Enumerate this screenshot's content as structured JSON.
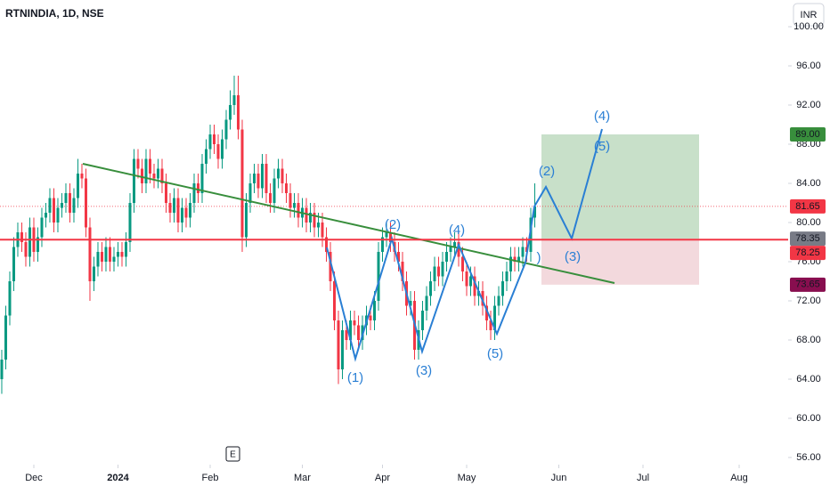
{
  "chart_data": {
    "type": "candlestick",
    "title": "RTNINDIA, 1D, NSE",
    "currency": "INR",
    "event": "E",
    "up_color": "#089981",
    "down_color": "#f23645",
    "grid": false,
    "ylim": [
      55.27,
      102.73
    ],
    "yticks": [
      {
        "value": 56,
        "label": "56.00"
      },
      {
        "value": 60,
        "label": "60.00"
      },
      {
        "value": 64,
        "label": "64.00"
      },
      {
        "value": 68,
        "label": "68.00"
      },
      {
        "value": 72,
        "label": "72.00"
      },
      {
        "value": 76,
        "label": "76.00"
      },
      {
        "value": 80,
        "label": "80.00"
      },
      {
        "value": 84,
        "label": "84.00"
      },
      {
        "value": 88,
        "label": "88.00"
      },
      {
        "value": 92,
        "label": "92.00"
      },
      {
        "value": 96,
        "label": "96.00"
      },
      {
        "value": 100,
        "label": "100.00"
      }
    ],
    "xlim": [
      -0.44,
      196.22
    ],
    "xticks": [
      {
        "value": 8,
        "label": "Dec"
      },
      {
        "value": 29,
        "label": "2024"
      },
      {
        "value": 52,
        "label": "Feb"
      },
      {
        "value": 75,
        "label": "Mar"
      },
      {
        "value": 95,
        "label": "Apr"
      },
      {
        "value": 116,
        "label": "May"
      },
      {
        "value": 139,
        "label": "Jun"
      },
      {
        "value": 160,
        "label": "Jul"
      },
      {
        "value": 184,
        "label": "Aug"
      }
    ],
    "open": [
      64.0,
      66.0,
      70.5,
      74.0,
      77.5,
      79.0,
      78.0,
      76.5,
      79.5,
      77.0,
      78.5,
      80.5,
      81.0,
      82.5,
      80.0,
      81.5,
      82.0,
      83.0,
      81.0,
      82.5,
      85.0,
      84.5,
      79.5,
      74.0,
      75.5,
      77.0,
      76.0,
      77.5,
      76.0,
      76.5,
      77.0,
      76.5,
      78.0,
      82.0,
      86.5,
      85.5,
      84.0,
      86.5,
      85.0,
      84.5,
      85.5,
      84.0,
      82.0,
      81.0,
      82.5,
      80.0,
      81.5,
      80.5,
      82.0,
      84.0,
      83.0,
      86.0,
      87.5,
      89.0,
      88.0,
      86.5,
      88.5,
      90.5,
      92.0,
      93.0,
      89.5,
      78.5,
      82.0,
      84.0,
      85.0,
      83.5,
      86.0,
      83.0,
      82.0,
      84.5,
      85.5,
      84.0,
      83.0,
      81.5,
      82.0,
      80.5,
      81.5,
      80.0,
      81.0,
      79.5,
      80.0,
      78.5,
      77.0,
      74.0,
      70.0,
      65.0,
      69.0,
      68.0,
      70.0,
      69.5,
      68.0,
      69.5,
      70.5,
      70.0,
      72.0,
      77.0,
      78.5,
      79.0,
      78.0,
      77.0,
      76.0,
      74.0,
      71.5,
      72.0,
      67.0,
      69.0,
      71.0,
      72.5,
      74.0,
      75.5,
      74.5,
      76.0,
      77.0,
      77.5,
      78.0,
      76.5,
      75.0,
      73.5,
      74.5,
      72.5,
      73.0,
      71.5,
      70.0,
      69.0,
      71.5,
      72.5,
      74.0,
      75.0,
      76.5,
      76.0,
      76.5,
      77.5,
      77.0,
      80.5
    ],
    "high": [
      67,
      71.5,
      75,
      78.5,
      80,
      80,
      79,
      80.5,
      80.5,
      79.5,
      81.5,
      82,
      83.5,
      83.5,
      82.5,
      83,
      84,
      84,
      83.5,
      86.5,
      86,
      85.5,
      80.5,
      76.5,
      78,
      78,
      78.5,
      78.5,
      77.5,
      78,
      78,
      79,
      83,
      87.5,
      87.5,
      86.5,
      87.5,
      87.5,
      86,
      86.5,
      86.5,
      85,
      83,
      83.5,
      83.5,
      82.5,
      82.5,
      83,
      85,
      85,
      87,
      88.5,
      90,
      90,
      89,
      89.5,
      91.5,
      93.5,
      95,
      95,
      90.5,
      83,
      85,
      86,
      86,
      87,
      87,
      84,
      85.5,
      86.5,
      86.5,
      85,
      84,
      83,
      83,
      82.5,
      82.5,
      82,
      82,
      81,
      81,
      79.5,
      78,
      75,
      71,
      70,
      70,
      71,
      71,
      70.5,
      70.5,
      71.5,
      71.5,
      73,
      78,
      79.5,
      80,
      80,
      79,
      78,
      77,
      75,
      73,
      73,
      70,
      72,
      73.5,
      75,
      76.5,
      76.5,
      77,
      78,
      78.5,
      79,
      79,
      77.5,
      76,
      75.5,
      75.5,
      74,
      74,
      72.5,
      71,
      72.5,
      73.5,
      75,
      76,
      77.5,
      77.5,
      77.5,
      78.5,
      78.5,
      81.5,
      84
    ],
    "low": [
      62.5,
      65,
      69.5,
      73,
      76.5,
      77,
      75.5,
      75.5,
      76,
      76,
      77.5,
      79.5,
      80,
      79,
      79,
      80.5,
      81,
      80,
      80,
      81.5,
      83.5,
      78.5,
      72,
      73,
      74.5,
      75,
      75,
      75,
      75,
      75.5,
      75.5,
      75.5,
      77,
      81,
      84.5,
      83,
      83,
      84,
      83.5,
      83.5,
      83,
      81,
      80,
      80,
      79,
      79,
      79.5,
      79.5,
      81,
      82,
      82,
      85,
      86.5,
      87,
      85.5,
      85.5,
      87.5,
      89.5,
      91,
      88.5,
      77,
      77.5,
      81,
      83,
      82.5,
      82.5,
      82,
      81,
      81,
      83.5,
      83,
      82,
      80.5,
      80.5,
      79.5,
      79.5,
      79,
      79,
      78.5,
      78.5,
      77.5,
      76,
      73,
      69,
      63.5,
      64,
      67,
      67,
      68.5,
      67,
      67,
      68.5,
      69,
      69,
      71,
      76,
      77.5,
      77,
      76,
      75,
      73,
      70.5,
      70.5,
      66,
      66,
      68,
      70,
      71.5,
      73,
      73.5,
      73.5,
      75,
      76,
      76.5,
      75.5,
      74,
      72.5,
      72.5,
      71.5,
      71.5,
      70.5,
      69,
      68,
      68,
      70.5,
      71.5,
      73,
      74,
      75,
      75,
      75.5,
      76,
      76,
      79.5
    ],
    "close": [
      66.0,
      70.5,
      74.0,
      77.5,
      79.0,
      78.0,
      76.5,
      79.5,
      77.0,
      78.5,
      80.5,
      81.0,
      82.5,
      80.0,
      81.5,
      82.0,
      83.0,
      81.0,
      82.5,
      85.0,
      84.5,
      79.5,
      74.0,
      75.5,
      77.0,
      76.0,
      77.5,
      76.0,
      76.5,
      77.0,
      76.5,
      78.0,
      82.0,
      86.5,
      85.5,
      84.0,
      86.5,
      85.0,
      84.5,
      85.5,
      84.0,
      82.0,
      81.0,
      82.5,
      80.0,
      81.5,
      80.5,
      82.0,
      84.0,
      83.0,
      86.0,
      87.5,
      89.0,
      88.0,
      86.5,
      88.5,
      90.5,
      92.0,
      93.0,
      89.5,
      78.5,
      82.0,
      84.0,
      85.0,
      83.5,
      86.0,
      83.0,
      82.0,
      84.5,
      85.5,
      84.0,
      83.0,
      81.5,
      82.0,
      80.5,
      81.5,
      80.0,
      81.0,
      79.5,
      80.0,
      78.5,
      77.0,
      74.0,
      70.0,
      65.0,
      69.0,
      68.0,
      70.0,
      69.5,
      68.0,
      69.5,
      70.5,
      70.0,
      72.0,
      77.0,
      78.5,
      79.0,
      78.0,
      77.0,
      76.0,
      74.0,
      71.5,
      72.0,
      67.0,
      69.0,
      71.0,
      72.5,
      74.0,
      75.5,
      74.5,
      76.0,
      77.0,
      77.5,
      78.0,
      76.5,
      75.0,
      73.5,
      74.5,
      72.5,
      73.0,
      71.5,
      70.0,
      69.0,
      71.5,
      72.5,
      74.0,
      75.0,
      76.5,
      76.0,
      76.5,
      77.5,
      77.0,
      80.5,
      81.65
    ],
    "price_line": {
      "value": 78.25,
      "color": "#f23645"
    },
    "price_labels": [
      {
        "value": 89.0,
        "label": "89.00",
        "color": "#388e3c"
      },
      {
        "value": 81.65,
        "label": "81.65",
        "color": "#f23645"
      },
      {
        "value": 78.35,
        "label": "78.35",
        "color": "#787b86"
      },
      {
        "value": 78.25,
        "label": "78.25",
        "color": "#f23645"
      },
      {
        "value": 73.65,
        "label": "73.65",
        "color": "#880e4f"
      }
    ],
    "annotations": [
      "(1)",
      "(2)",
      "(3)",
      "(4)",
      "(5)",
      ")",
      "(2)",
      "(3)",
      "(4)",
      "(5)"
    ]
  }
}
